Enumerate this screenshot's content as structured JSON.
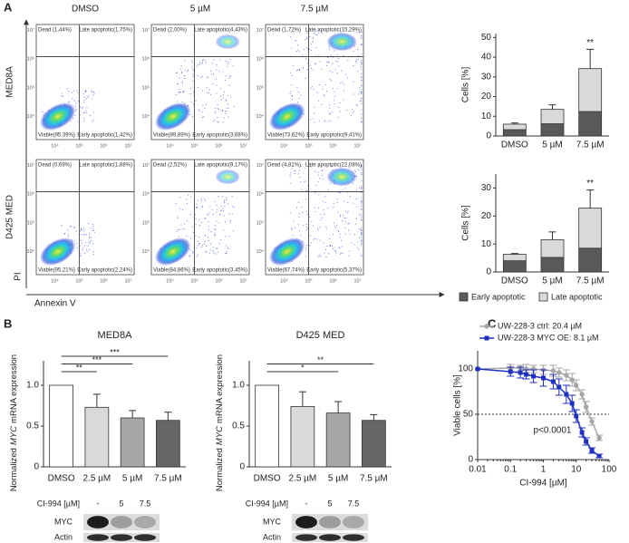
{
  "panel_labels": [
    "A",
    "B",
    "C"
  ],
  "flow_cytometry": {
    "columns": [
      "DMSO",
      "5 µM",
      "7.5 µM"
    ],
    "rows": [
      "MED8A",
      "D425 MED"
    ],
    "ticks": [
      "10⁴",
      "10⁵",
      "10⁶",
      "10⁷"
    ],
    "y_label": "PI",
    "x_label": "Annexin V",
    "plots": [
      [
        {
          "dead": "Dead (1,44%)",
          "late": "Late apoptotic(1,75%)",
          "viable": "Viable(95,39%)",
          "early": "Early apoptotic(1,42%)"
        },
        {
          "dead": "Dead (2,00%)",
          "late": "Late apoptotic(4,43%)",
          "viable": "Viable(89,89%)",
          "early": "Early apoptotic(3,68%)"
        },
        {
          "dead": "Dead (1,72%)",
          "late": "Late apoptotic(15,29%)",
          "viable": "Viable(73,62%)",
          "early": "Early apoptotic(9,41%)"
        }
      ],
      [
        {
          "dead": "Dead (0,69%)",
          "late": "Late apoptotic(1,88%)",
          "viable": "Viable(95,21%)",
          "early": "Early apoptotic(2,24%)"
        },
        {
          "dead": "Dead (2,52%)",
          "late": "Late apoptotic(9,17%)",
          "viable": "Viable(84,86%)",
          "early": "Early apoptotic(3,45%)"
        },
        {
          "dead": "Dead (4,81%)",
          "late": "Late apoptotic(22,08%)",
          "viable": "Viable(67,74%)",
          "early": "Early apoptotic(5,37%)"
        }
      ]
    ]
  },
  "chart_data": [
    {
      "type": "stacked_bar",
      "ylabel": "Cells [%]",
      "categories": [
        "DMSO",
        "5 µM",
        "7.5 µM"
      ],
      "series": [
        {
          "color": "#595959",
          "values": [
            3.2,
            6.2,
            12.4
          ],
          "errors": [
            0.8,
            1.5,
            2.0
          ]
        },
        {
          "color": "#d9d9d9",
          "values": [
            2.8,
            7.3,
            21.8
          ],
          "errors": [
            0.6,
            2.3,
            9.8
          ]
        }
      ],
      "significance": [
        null,
        null,
        "**"
      ],
      "ylim": [
        0,
        52
      ],
      "yticks": [
        0,
        10,
        20,
        30,
        40,
        50
      ]
    },
    {
      "type": "stacked_bar",
      "ylabel": "Cells [%]",
      "categories": [
        "DMSO",
        "5 µM",
        "7.5 µM"
      ],
      "series": [
        {
          "name": "Early apoptotic",
          "color": "#595959",
          "values": [
            4.0,
            5.2,
            8.5
          ],
          "errors": [
            0.8,
            0.3,
            1.5
          ]
        },
        {
          "name": "Late apoptotic",
          "color": "#d9d9d9",
          "values": [
            2.3,
            6.3,
            14.3
          ],
          "errors": [
            0.3,
            2.8,
            6.5
          ]
        }
      ],
      "significance": [
        null,
        null,
        "**"
      ],
      "ylim": [
        0,
        35
      ],
      "yticks": [
        0,
        10,
        20,
        30
      ]
    },
    {
      "type": "bar",
      "title": "MED8A",
      "ylabel": [
        "Normalized",
        "MYC",
        "mRNA expression"
      ],
      "categories": [
        "DMSO",
        "2.5 µM",
        "5 µM",
        "7.5 µM"
      ],
      "values": [
        1.0,
        0.73,
        0.6,
        0.57
      ],
      "errors": [
        0,
        0.16,
        0.09,
        0.1
      ],
      "colors": [
        "#ffffff",
        "#d9d9d9",
        "#a6a6a6",
        "#666666"
      ],
      "significance": [
        null,
        "**",
        "***",
        "***"
      ],
      "ylim": [
        0,
        1.3
      ],
      "yticks": [
        0,
        0.5,
        {
          "value": 1,
          "label": "1.0"
        }
      ]
    },
    {
      "type": "bar",
      "title": "D425 MED",
      "ylabel": [
        "Normalized",
        "MYC",
        "mRNA expression"
      ],
      "categories": [
        "DMSO",
        "2.5 µM",
        "5 µM",
        "7.5 µM"
      ],
      "values": [
        1.0,
        0.74,
        0.66,
        0.57
      ],
      "errors": [
        0,
        0.18,
        0.14,
        0.07
      ],
      "colors": [
        "#ffffff",
        "#d9d9d9",
        "#a6a6a6",
        "#666666"
      ],
      "significance": [
        null,
        null,
        "*",
        "**"
      ],
      "ylim": [
        0,
        1.3
      ],
      "yticks": [
        0,
        0.5,
        {
          "value": 1,
          "label": "1.0"
        }
      ]
    },
    {
      "type": "line",
      "xlabel": "CI-994 [µM]",
      "ylabel": "Viable cells [%]",
      "log_x": true,
      "x": [
        0.01,
        0.1,
        0.2,
        0.3,
        0.5,
        1,
        2,
        3,
        5,
        7.5,
        10,
        15,
        20,
        30,
        50
      ],
      "series": [
        {
          "name": "UW-228-3 ctrl: 20.4 µM",
          "color": "#a6a6a6",
          "marker": "circle",
          "values": [
            100,
            101,
            101,
            100,
            100,
            99,
            98,
            96,
            93,
            88,
            82,
            72,
            58,
            42,
            24
          ],
          "errors": [
            0,
            4,
            3,
            5,
            4,
            5,
            6,
            5,
            6,
            7,
            6,
            5,
            6,
            4,
            3
          ]
        },
        {
          "name": "UW-228-3 MYC OE: 8.1 µM",
          "color": "#1f2fbf",
          "marker": "square",
          "values": [
            100,
            97,
            96,
            94,
            92,
            90,
            86,
            80,
            72,
            62,
            48,
            30,
            20,
            10,
            4
          ],
          "errors": [
            0,
            5,
            6,
            5,
            7,
            9,
            8,
            9,
            10,
            9,
            7,
            5,
            4,
            3,
            2
          ]
        }
      ],
      "reference_line": 50,
      "annotation": "p<0.0001",
      "xlim": [
        0.01,
        100
      ],
      "xticks": [
        0.01,
        0.1,
        1,
        10,
        100
      ],
      "ylim": [
        0,
        120
      ],
      "yticks": [
        0,
        50,
        100
      ]
    }
  ],
  "blots": [
    {
      "treatment_label": "CI-994 [µM]",
      "lanes": [
        "-",
        "5",
        "7.5"
      ],
      "rows": [
        "MYC",
        "Actin"
      ]
    },
    {
      "treatment_label": "CI-994 [µM]",
      "lanes": [
        "-",
        "5",
        "7.5"
      ],
      "rows": [
        "MYC",
        "Actin"
      ]
    }
  ]
}
